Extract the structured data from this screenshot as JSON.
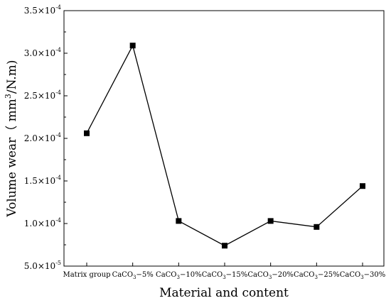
{
  "chart_data": {
    "type": "line",
    "categories": [
      {
        "base": "Matrix group",
        "sub": "",
        "suffix": ""
      },
      {
        "base": "CaCO",
        "sub": "3",
        "suffix": "−5%"
      },
      {
        "base": "CaCO",
        "sub": "3",
        "suffix": "−10%"
      },
      {
        "base": "CaCO",
        "sub": "3",
        "suffix": "−15%"
      },
      {
        "base": "CaCO",
        "sub": "3",
        "suffix": "−20%"
      },
      {
        "base": "CaCO",
        "sub": "3",
        "suffix": "−25%"
      },
      {
        "base": "CaCO",
        "sub": "3",
        "suffix": "−30%"
      }
    ],
    "series": [
      {
        "values": [
          0.000206,
          0.000309,
          0.000103,
          7.4e-05,
          0.000103,
          9.6e-05,
          0.000144
        ],
        "color": "#000000",
        "marker": "square"
      }
    ],
    "xlabel": "Material and content",
    "ylabel": {
      "prefix": "Volume wear（ mm",
      "sup": "3",
      "suffix": "/N.m)"
    },
    "ylim": [
      5e-05,
      0.00035
    ],
    "yticks": [
      {
        "value": 5e-05,
        "mantissa": "5.0×10",
        "exp": "-5"
      },
      {
        "value": 0.0001,
        "mantissa": "1.0×10",
        "exp": "-4"
      },
      {
        "value": 0.00015,
        "mantissa": "1.5×10",
        "exp": "-4"
      },
      {
        "value": 0.0002,
        "mantissa": "2.0×10",
        "exp": "-4"
      },
      {
        "value": 0.00025,
        "mantissa": "2.5×10",
        "exp": "-4"
      },
      {
        "value": 0.0003,
        "mantissa": "3.0×10",
        "exp": "-4"
      },
      {
        "value": 0.00035,
        "mantissa": "3.5×10",
        "exp": "-4"
      }
    ],
    "grid": false,
    "legend": "none"
  }
}
